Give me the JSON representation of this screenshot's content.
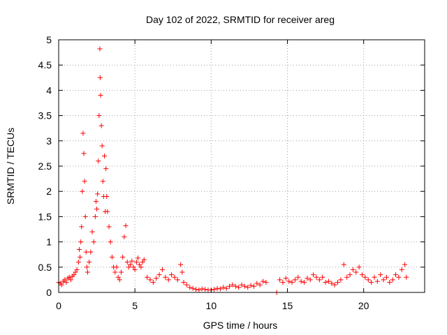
{
  "chart_data": {
    "type": "scatter",
    "title": "Day 102 of 2022, SRMTID for receiver areg",
    "xlabel": "GPS time / hours",
    "ylabel": "SRMTID / TECUs",
    "xlim": [
      0,
      24
    ],
    "ylim": [
      0,
      5
    ],
    "xticks": [
      0,
      5,
      10,
      15,
      20
    ],
    "xtick_labels": [
      "0",
      "5",
      "10",
      "15",
      "20"
    ],
    "yticks": [
      0,
      0.5,
      1,
      1.5,
      2,
      2.5,
      3,
      3.5,
      4,
      4.5,
      5
    ],
    "ytick_labels": [
      "0",
      "0.5",
      "1",
      "1.5",
      "2",
      "2.5",
      "3",
      "3.5",
      "4",
      "4.5",
      "5"
    ],
    "grid": true,
    "marker": "+",
    "color": "#ff0000",
    "series": [
      {
        "name": "SRMTID",
        "x": [
          0.0,
          0.1,
          0.2,
          0.3,
          0.4,
          0.5,
          0.6,
          0.7,
          0.8,
          0.9,
          1.0,
          1.1,
          1.2,
          1.3,
          1.35,
          1.4,
          1.45,
          1.5,
          1.55,
          1.6,
          1.65,
          1.7,
          1.75,
          1.8,
          1.85,
          1.9,
          2.0,
          2.1,
          2.2,
          2.3,
          2.4,
          2.45,
          2.5,
          2.55,
          2.6,
          2.65,
          2.7,
          2.72,
          2.75,
          2.8,
          2.85,
          2.9,
          2.95,
          3.0,
          3.05,
          3.1,
          3.15,
          3.2,
          3.3,
          3.4,
          3.5,
          3.6,
          3.7,
          3.8,
          3.9,
          4.0,
          4.1,
          4.2,
          4.3,
          4.4,
          4.5,
          4.6,
          4.7,
          4.8,
          4.9,
          5.0,
          5.1,
          5.2,
          5.3,
          5.4,
          5.5,
          5.6,
          5.8,
          6.0,
          6.2,
          6.4,
          6.6,
          6.8,
          7.0,
          7.2,
          7.4,
          7.6,
          7.8,
          8.0,
          8.1,
          8.2,
          8.4,
          8.6,
          8.8,
          9.0,
          9.2,
          9.4,
          9.6,
          9.8,
          10.0,
          10.2,
          10.4,
          10.6,
          10.8,
          11.0,
          11.2,
          11.4,
          11.6,
          11.8,
          12.0,
          12.2,
          12.4,
          12.6,
          12.8,
          13.0,
          13.2,
          13.4,
          13.6,
          14.3,
          14.5,
          14.7,
          14.9,
          15.1,
          15.3,
          15.5,
          15.7,
          15.9,
          16.1,
          16.3,
          16.5,
          16.7,
          16.9,
          17.1,
          17.3,
          17.5,
          17.7,
          17.9,
          18.1,
          18.3,
          18.5,
          18.7,
          18.9,
          19.1,
          19.3,
          19.5,
          19.7,
          19.9,
          20.1,
          20.3,
          20.5,
          20.7,
          20.9,
          21.1,
          21.3,
          21.5,
          21.7,
          21.9,
          22.1,
          22.3,
          22.5,
          22.7,
          22.8
        ],
        "y": [
          0.2,
          0.18,
          0.15,
          0.22,
          0.25,
          0.2,
          0.28,
          0.3,
          0.25,
          0.32,
          0.35,
          0.4,
          0.45,
          0.6,
          0.85,
          0.7,
          1.0,
          1.3,
          2.0,
          3.15,
          2.75,
          2.2,
          1.5,
          0.8,
          0.5,
          0.4,
          0.6,
          0.8,
          1.2,
          1.0,
          1.5,
          1.8,
          1.65,
          1.95,
          2.6,
          3.5,
          4.82,
          4.25,
          3.9,
          3.3,
          2.9,
          2.2,
          1.9,
          2.7,
          1.6,
          2.45,
          1.9,
          1.6,
          1.3,
          1.0,
          0.7,
          0.5,
          0.4,
          0.5,
          0.3,
          0.25,
          0.4,
          0.7,
          1.1,
          1.32,
          0.6,
          0.5,
          0.55,
          0.62,
          0.5,
          0.45,
          0.6,
          0.68,
          0.55,
          0.5,
          0.6,
          0.65,
          0.3,
          0.25,
          0.2,
          0.28,
          0.35,
          0.45,
          0.3,
          0.25,
          0.35,
          0.3,
          0.25,
          0.55,
          0.4,
          0.2,
          0.15,
          0.1,
          0.08,
          0.06,
          0.05,
          0.07,
          0.06,
          0.05,
          0.05,
          0.06,
          0.08,
          0.07,
          0.1,
          0.08,
          0.12,
          0.15,
          0.12,
          0.1,
          0.15,
          0.12,
          0.1,
          0.14,
          0.12,
          0.18,
          0.15,
          0.22,
          0.2,
          0.0,
          0.25,
          0.2,
          0.28,
          0.22,
          0.2,
          0.25,
          0.3,
          0.22,
          0.2,
          0.28,
          0.25,
          0.35,
          0.3,
          0.25,
          0.3,
          0.2,
          0.22,
          0.18,
          0.15,
          0.2,
          0.25,
          0.55,
          0.3,
          0.35,
          0.45,
          0.4,
          0.5,
          0.35,
          0.3,
          0.25,
          0.2,
          0.3,
          0.22,
          0.35,
          0.25,
          0.3,
          0.2,
          0.25,
          0.35,
          0.3,
          0.45,
          0.55,
          0.3
        ]
      }
    ]
  }
}
